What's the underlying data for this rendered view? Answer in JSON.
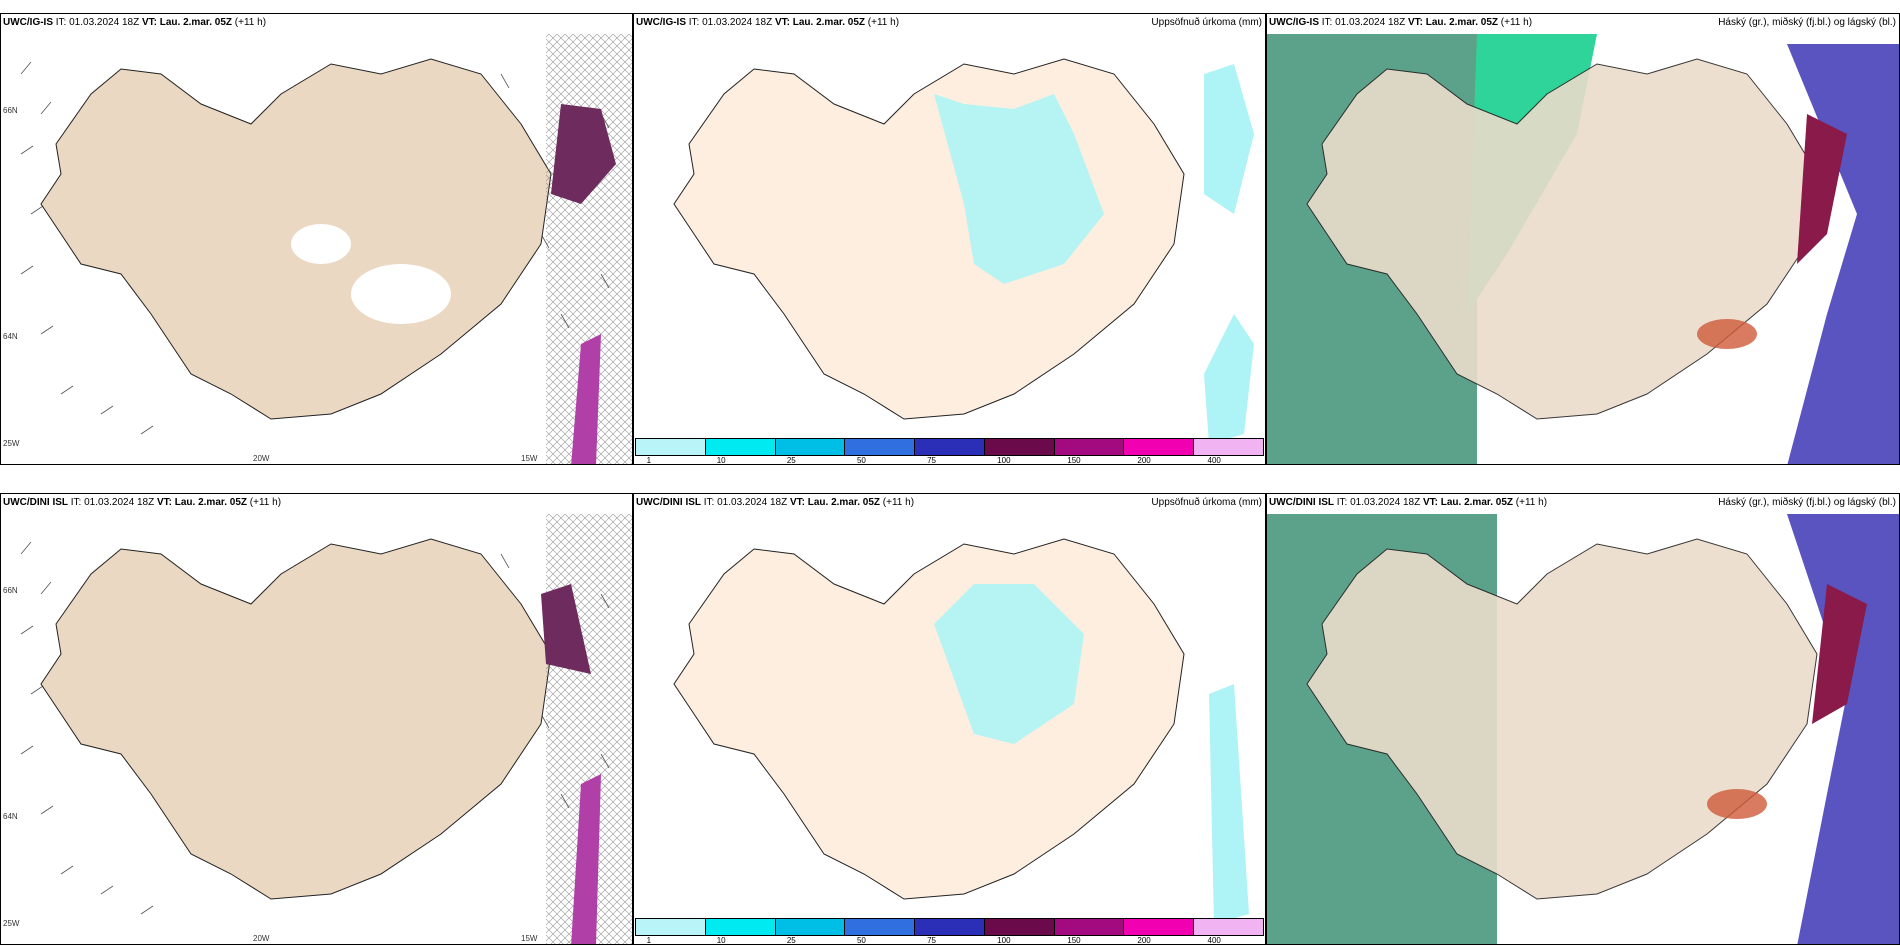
{
  "panels": [
    {
      "model": "UWC/IG-IS",
      "it_label": "IT:",
      "it_value": "01.03.2024 18Z",
      "vt_label": "VT:",
      "vt_value": "Lau. 2.mar. 05Z",
      "lead": "(+11 h)",
      "right_title": ""
    },
    {
      "model": "UWC/IG-IS",
      "it_label": "IT:",
      "it_value": "01.03.2024 18Z",
      "vt_label": "VT:",
      "vt_value": "Lau. 2.mar. 05Z",
      "lead": "(+11 h)",
      "right_title": "Uppsöfnuð úrkoma (mm)"
    },
    {
      "model": "UWC/IG-IS",
      "it_label": "IT:",
      "it_value": "01.03.2024 18Z",
      "vt_label": "VT:",
      "vt_value": "Lau. 2.mar. 05Z",
      "lead": "(+11 h)",
      "right_title": "Háský (gr.), miðský (fj.bl.) og lágský (bl.)"
    },
    {
      "model": "UWC/DINI ISL",
      "it_label": "IT:",
      "it_value": "01.03.2024 18Z",
      "vt_label": "VT:",
      "vt_value": "Lau. 2.mar. 05Z",
      "lead": "(+11 h)",
      "right_title": ""
    },
    {
      "model": "UWC/DINI ISL",
      "it_label": "IT:",
      "it_value": "01.03.2024 18Z",
      "vt_label": "VT:",
      "vt_value": "Lau. 2.mar. 05Z",
      "lead": "(+11 h)",
      "right_title": "Uppsöfnuð úrkoma (mm)"
    },
    {
      "model": "UWC/DINI ISL",
      "it_label": "IT:",
      "it_value": "01.03.2024 18Z",
      "vt_label": "VT:",
      "vt_value": "Lau. 2.mar. 05Z",
      "lead": "(+11 h)",
      "right_title": "Háský (gr.), miðský (fj.bl.) og lágský (bl.)"
    }
  ],
  "wind_axes": {
    "lat_66": "66N",
    "lat_64": "64N",
    "lon_25": "25W",
    "lon_20": "20W",
    "lon_15": "15W"
  },
  "colorbar": {
    "labels": [
      "1",
      "10",
      "25",
      "50",
      "75",
      "100",
      "150",
      "200",
      "400"
    ],
    "colors": [
      "#b9f5f8",
      "#00eaf2",
      "#00bfe6",
      "#2f6fe0",
      "#2b2fb8",
      "#6b0a4a",
      "#a30a80",
      "#f000b0",
      "#f2b3f2"
    ]
  },
  "colors": {
    "land": "#ebd8c2",
    "land_cloud": "#eadccb",
    "precip": "#aef3f5",
    "high_cloud": "#00c08a",
    "mid_cloud": "#8a1a4a",
    "low_cloud": "#3a2fb4"
  }
}
